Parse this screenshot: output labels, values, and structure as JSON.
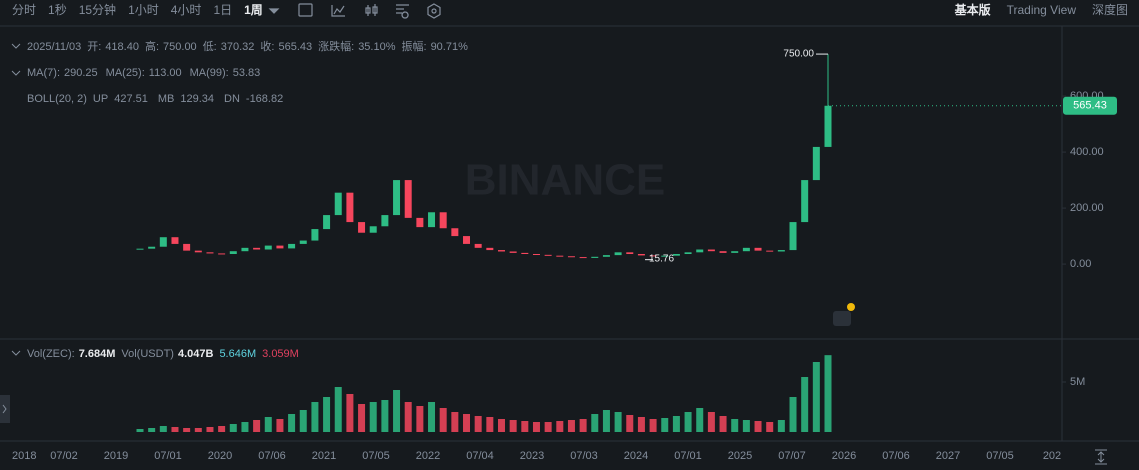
{
  "toolbar": {
    "intervals": [
      "分时",
      "1秒",
      "15分钟",
      "1小时",
      "4小时",
      "1日",
      "1周"
    ],
    "active": 6,
    "views": [
      "基本版",
      "Trading View",
      "深度图"
    ],
    "active_view": 0
  },
  "legend": {
    "date": "2025/11/03",
    "ohlc": [
      {
        "label": "开:",
        "value": "418.40"
      },
      {
        "label": "高:",
        "value": "750.00"
      },
      {
        "label": "低:",
        "value": "370.32"
      },
      {
        "label": "收:",
        "value": "565.43"
      },
      {
        "label": "涨跌幅:",
        "value": "35.10%"
      },
      {
        "label": "振幅:",
        "value": "90.71%"
      }
    ],
    "ma": [
      {
        "label": "MA(7):",
        "value": "290.25",
        "color": "#f0b90b"
      },
      {
        "label": "MA(25):",
        "value": "113.00",
        "color": "#e84fa8"
      },
      {
        "label": "MA(99):",
        "value": "53.83",
        "color": "#b98af0"
      }
    ],
    "boll": {
      "label": "BOLL(20, 2)",
      "items": [
        {
          "label": "UP",
          "value": "427.51"
        },
        {
          "label": "MB",
          "value": "129.34"
        },
        {
          "label": "DN",
          "value": "-168.82"
        }
      ]
    },
    "volume": [
      {
        "label": "Vol(ZEC):",
        "value": "7.684M"
      },
      {
        "label": "Vol(USDT)",
        "value": "4.047B"
      },
      {
        "value": "5.646M",
        "color": "#5fd3e0"
      },
      {
        "value": "3.059M",
        "color": "#e0415f"
      }
    ]
  },
  "chart_data": {
    "type": "candlestick",
    "watermark": "BINANCE",
    "up_color": "#2ebd85",
    "down_color": "#f6465d",
    "values": [
      55,
      62,
      96,
      72,
      48,
      42,
      38,
      36,
      46,
      58,
      52,
      66,
      56,
      72,
      84,
      125,
      175,
      255,
      150,
      112,
      135,
      175,
      300,
      165,
      132,
      185,
      128,
      100,
      72,
      58,
      50,
      45,
      40,
      36,
      33,
      30,
      28,
      25,
      22,
      26,
      32,
      42,
      36,
      31,
      28,
      30,
      36,
      42,
      52,
      46,
      40,
      46,
      58,
      48,
      45,
      50,
      150,
      300,
      418.4,
      565.43
    ],
    "ylim": [
      -264,
      836
    ],
    "yticks": [
      {
        "value": 0,
        "label": "0.00"
      },
      {
        "value": 200,
        "label": "200.00"
      },
      {
        "value": 400,
        "label": "400.00"
      },
      {
        "value": 600,
        "label": "600.00"
      }
    ],
    "high": {
      "value": 750,
      "label": "750.00"
    },
    "low": {
      "value": 15.76,
      "label": "15.76"
    },
    "last": {
      "value": 565.43,
      "label": "565.43"
    },
    "x_labels": [
      "2018",
      "07/02",
      "2019",
      "07/01",
      "2020",
      "07/06",
      "2021",
      "07/05",
      "2022",
      "07/04",
      "2023",
      "07/03",
      "2024",
      "07/01",
      "2025",
      "07/07",
      "2026",
      "07/06",
      "2027",
      "07/05",
      "202"
    ],
    "volume": {
      "values": [
        0.3,
        0.4,
        0.6,
        0.5,
        0.4,
        0.4,
        0.5,
        0.6,
        0.8,
        1.0,
        1.2,
        1.5,
        1.3,
        1.8,
        2.2,
        3.0,
        3.5,
        4.5,
        3.8,
        2.8,
        3.0,
        3.2,
        4.2,
        3.0,
        2.6,
        3.0,
        2.4,
        2.0,
        1.8,
        1.6,
        1.5,
        1.3,
        1.2,
        1.1,
        1.0,
        1.0,
        1.1,
        1.2,
        1.3,
        1.8,
        2.2,
        2.0,
        1.7,
        1.5,
        1.3,
        1.4,
        1.6,
        2.0,
        2.4,
        2.0,
        1.6,
        1.3,
        1.2,
        1.1,
        1.0,
        1.2,
        3.5,
        5.5,
        7.0,
        7.684
      ],
      "ylim": [
        0,
        9
      ],
      "yticks": [
        {
          "value": 5,
          "label": "5M"
        }
      ]
    }
  }
}
